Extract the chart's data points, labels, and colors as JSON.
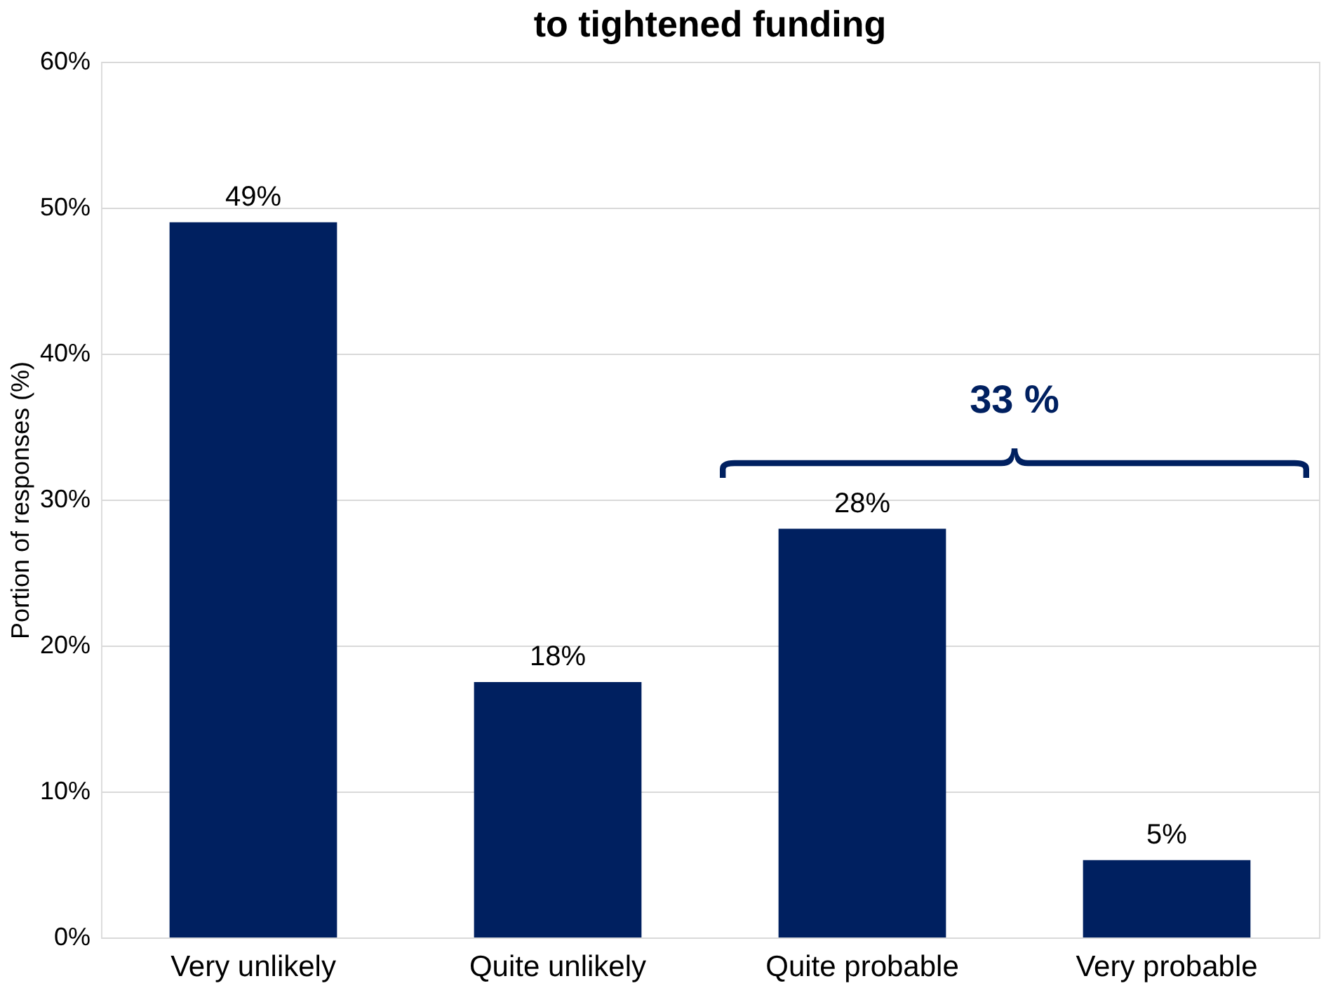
{
  "chart_data": {
    "type": "bar",
    "title": "to tightened funding",
    "ylabel": "Portion of responses (%)",
    "categories": [
      "Very unlikely",
      "Quite unlikely",
      "Quite probable",
      "Very probable"
    ],
    "values": [
      49,
      17.5,
      28,
      5.3
    ],
    "color": "#002060",
    "value_labels": [
      "49%",
      "18%",
      "28%",
      "5%"
    ],
    "ylim": [
      0,
      60
    ],
    "yticks": [
      {
        "value": 0,
        "label": "0%"
      },
      {
        "value": 10,
        "label": "10%"
      },
      {
        "value": 20,
        "label": "20%"
      },
      {
        "value": 30,
        "label": "30%"
      },
      {
        "value": 40,
        "label": "40%"
      },
      {
        "value": 50,
        "label": "50%"
      },
      {
        "value": 60,
        "label": "60%"
      }
    ],
    "grid": "y",
    "annotations": [
      "33 %"
    ]
  }
}
